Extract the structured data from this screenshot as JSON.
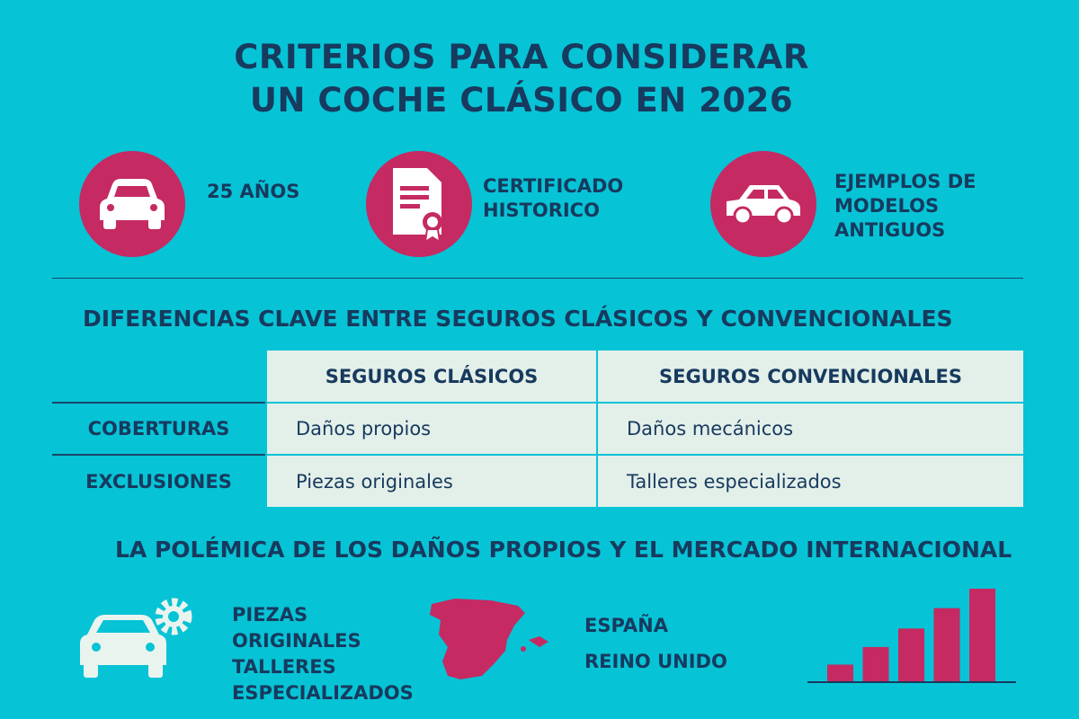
{
  "title": {
    "line1": "CRITERIOS PARA CONSIDERAR",
    "line2": "UN COCHE CLÁSICO EN 2026"
  },
  "criteria": [
    {
      "icon": "car-front-icon",
      "label": "25 AÑOS"
    },
    {
      "icon": "certificate-icon",
      "label": "CERTIFICADO HISTORICO"
    },
    {
      "icon": "car-side-icon",
      "label": "EJEMPLOS DE MODELOS ANTIGUOS"
    }
  ],
  "differences": {
    "heading": "DIFERENCIAS CLAVE ENTRE  SEGUROS CLÁSICOS Y CONVENCIONALES",
    "columns": [
      "SEGUROS CLÁSICOS",
      "SEGUROS CONVENCIONALES"
    ],
    "rows": [
      {
        "label": "COBERTURAS",
        "cells": [
          "Daños propios",
          "Daños mecánicos"
        ]
      },
      {
        "label": "EXCLUSIONES",
        "cells": [
          "Piezas originales",
          "Talleres especializados"
        ]
      }
    ]
  },
  "controversy": {
    "heading": "LA POLÉMICA DE LOS DAÑOS PROPIOS Y EL MERCADO INTERNACIONAL",
    "parts_list": [
      "PIEZAS",
      "ORIGINALES",
      "TALLERES",
      "ESPECIALIZADOS"
    ],
    "countries": [
      "ESPAÑA",
      "REINO UNIDO"
    ]
  },
  "chart_data": {
    "type": "bar",
    "values": [
      18,
      37,
      57,
      79,
      100
    ],
    "color": "#c52a62"
  },
  "colors": {
    "background": "#07c3d6",
    "accent": "#c52a62",
    "text": "#173a5e",
    "table": "#e3efe9"
  }
}
